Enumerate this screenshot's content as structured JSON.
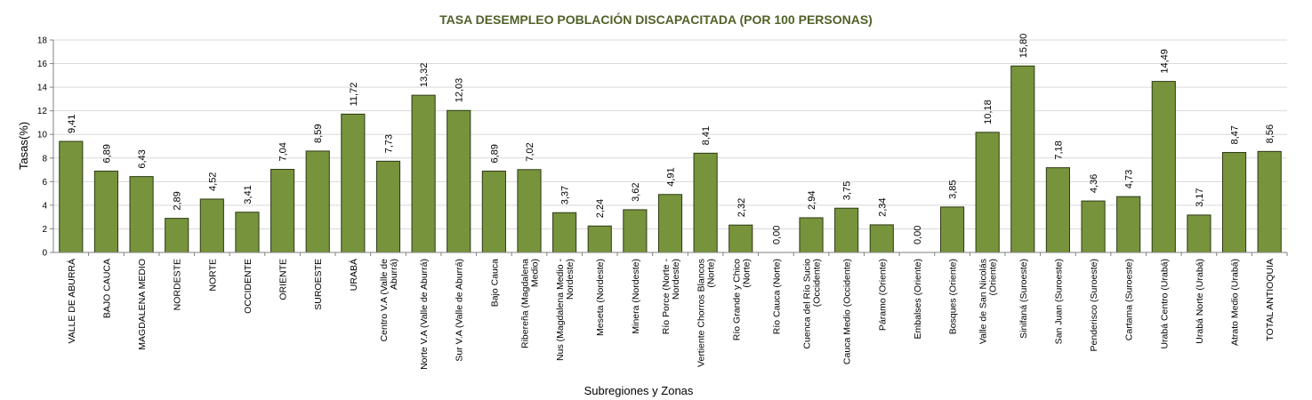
{
  "chart_data": {
    "type": "bar",
    "title": "TASA DESEMPLEO POBLACIÓN DISCAPACITADA (POR 100 PERSONAS)",
    "xlabel": "Subregiones y Zonas",
    "ylabel": "Tasas(%)",
    "ylim": [
      0,
      18
    ],
    "yticks": [
      "0",
      "2",
      "4",
      "6",
      "8",
      "10",
      "12",
      "14",
      "16",
      "18"
    ],
    "grid": true,
    "bar_color": "#77933c",
    "bar_edge_color": "#2d3a14",
    "categories": [
      [
        "VALLE DE ABURRÁ"
      ],
      [
        "BAJO CAUCA"
      ],
      [
        "MAGDALENA MEDIO"
      ],
      [
        "NORDESTE"
      ],
      [
        "NORTE"
      ],
      [
        "OCCIDENTE"
      ],
      [
        "ORIENTE"
      ],
      [
        "SUROESTE"
      ],
      [
        "URABÁ"
      ],
      [
        "Centro V.A (Valle de",
        "Aburrá)"
      ],
      [
        "Norte V.A (Valle de Aburrá)"
      ],
      [
        "Sur  V.A (Valle de Aburrá)"
      ],
      [
        "Bajo Cauca"
      ],
      [
        "Ribereña  (Magdalena",
        "Medio)"
      ],
      [
        "Nus  (Magdalena Medio -",
        "Nordeste)"
      ],
      [
        "Meseta  (Nordeste)"
      ],
      [
        "Minera  (Nordeste)"
      ],
      [
        "Río Porce  (Norte -",
        "Nordeste)"
      ],
      [
        "Vertiente Chorros Blancos",
        "(Norte)"
      ],
      [
        "Río Grande y Chico",
        "(Norte)"
      ],
      [
        "Río Cauca  (Norte)"
      ],
      [
        "Cuenca del Río Sucio",
        "(Occidente)"
      ],
      [
        "Cauca Medio  (Occidente)"
      ],
      [
        "Páramo  (Oriente)"
      ],
      [
        "Embalses  (Oriente)"
      ],
      [
        "Bosques  (Oriente)"
      ],
      [
        "Valle de San Nicolás",
        "(Oriente)"
      ],
      [
        "Sinifaná  (Suroeste)"
      ],
      [
        "San Juan  (Suroeste)"
      ],
      [
        "Penderisco  (Suroeste)"
      ],
      [
        "Cartama  (Suroeste)"
      ],
      [
        "Urabá Centro  (Urabá)"
      ],
      [
        "Urabá Norte  (Urabá)"
      ],
      [
        "Atrato Medio  (Urabá)"
      ],
      [
        "TOTAL ANTIOQUIA"
      ]
    ],
    "values": [
      9.41,
      6.89,
      6.43,
      2.89,
      4.52,
      3.41,
      7.04,
      8.59,
      11.72,
      7.73,
      13.32,
      12.03,
      6.89,
      7.02,
      3.37,
      2.24,
      3.62,
      4.91,
      8.41,
      2.32,
      0.0,
      2.94,
      3.75,
      2.34,
      0.0,
      3.85,
      10.18,
      15.8,
      7.18,
      4.36,
      4.73,
      14.49,
      3.17,
      8.47,
      8.56
    ],
    "value_labels": [
      "9,41",
      "6,89",
      "6,43",
      "2,89",
      "4,52",
      "3,41",
      "7,04",
      "8,59",
      "11,72",
      "7,73",
      "13,32",
      "12,03",
      "6,89",
      "7,02",
      "3,37",
      "2,24",
      "3,62",
      "4,91",
      "8,41",
      "2,32",
      "0,00",
      "2,94",
      "3,75",
      "2,34",
      "0,00",
      "3,85",
      "10,18",
      "15,80",
      "7,18",
      "4,36",
      "4,73",
      "14,49",
      "3,17",
      "8,47",
      "8,56"
    ]
  }
}
